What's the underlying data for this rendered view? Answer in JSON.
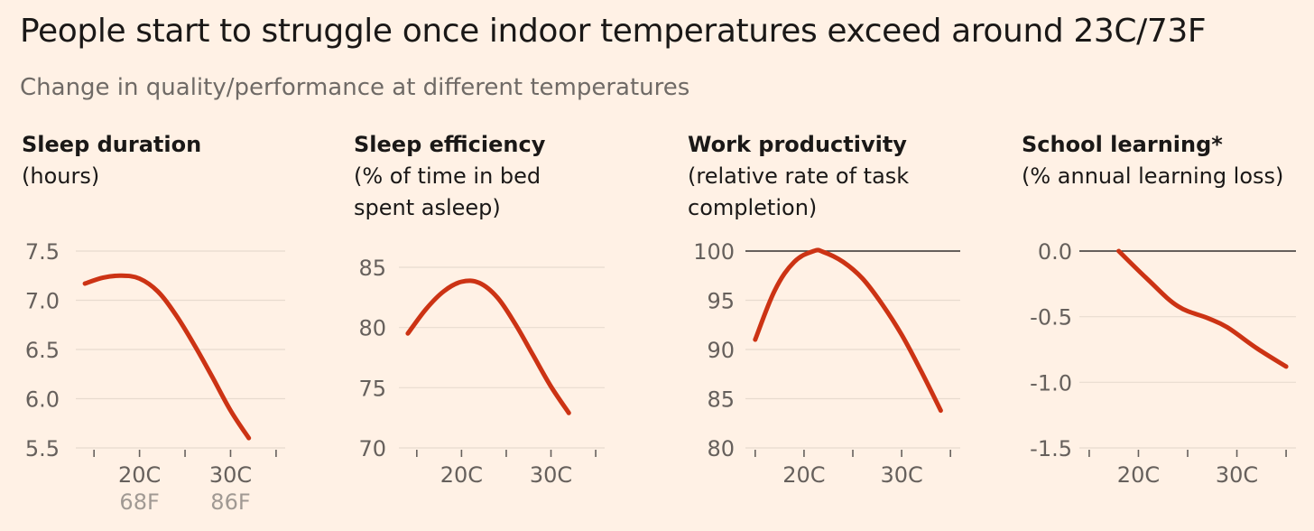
{
  "title": "People start to struggle once indoor temperatures exceed around 23C/73F",
  "subtitle": "Change in quality/performance at different temperatures",
  "colors": {
    "background": "#FFF1E5",
    "line": "#CC3314",
    "grid": "#E8DBCF",
    "reference_line": "#33302E",
    "tick_label": "#66605C",
    "secondary_tick_label": "#A09993"
  },
  "chart_data": [
    {
      "type": "line",
      "title": "Sleep duration",
      "ylabel": "(hours)",
      "x": [
        14,
        16,
        18,
        20,
        22,
        24,
        26,
        28,
        30,
        32
      ],
      "values": [
        7.17,
        7.23,
        7.25,
        7.22,
        7.09,
        6.85,
        6.55,
        6.22,
        5.88,
        5.6
      ],
      "xlim": [
        13,
        36
      ],
      "ylim": [
        5.5,
        7.5
      ],
      "yticks": [
        7.5,
        7.0,
        6.5,
        6.0,
        5.5
      ],
      "ytick_labels": [
        "7.5",
        "7.0",
        "6.5",
        "6.0",
        "5.5"
      ],
      "xticks": [
        15,
        20,
        25,
        30,
        35
      ],
      "xtick_labels": [
        {
          "x": 20,
          "label": "20C",
          "sub": "68F"
        },
        {
          "x": 30,
          "label": "30C",
          "sub": "86F"
        }
      ],
      "grid": true
    },
    {
      "type": "line",
      "title": "Sleep efficiency",
      "ylabel": "(% of time in bed spent asleep)",
      "x": [
        14,
        16,
        18,
        20,
        22,
        24,
        26,
        28,
        30,
        32
      ],
      "values": [
        79.5,
        81.5,
        83.0,
        83.8,
        83.7,
        82.5,
        80.3,
        77.7,
        75.1,
        72.9
      ],
      "xlim": [
        13,
        36
      ],
      "ylim": [
        70,
        85
      ],
      "yticks": [
        85,
        80,
        75,
        70
      ],
      "ytick_labels": [
        "85",
        "80",
        "75",
        "70"
      ],
      "xticks": [
        15,
        20,
        25,
        30,
        35
      ],
      "xtick_labels": [
        {
          "x": 20,
          "label": "20C"
        },
        {
          "x": 30,
          "label": "30C"
        }
      ],
      "grid": true
    },
    {
      "type": "line",
      "title": "Work productivity",
      "ylabel": "(relative rate of task completion)",
      "x": [
        15,
        17,
        19,
        21,
        22,
        24,
        26,
        28,
        30,
        32,
        34
      ],
      "values": [
        91,
        96,
        98.9,
        100,
        99.9,
        98.9,
        97.2,
        94.6,
        91.5,
        87.8,
        83.8
      ],
      "xlim": [
        14,
        36
      ],
      "ylim": [
        80,
        100
      ],
      "yticks": [
        100,
        95,
        90,
        85,
        80
      ],
      "ytick_labels": [
        "100",
        "95",
        "90",
        "85",
        "80"
      ],
      "reference_line": 100,
      "xticks": [
        15,
        20,
        25,
        30,
        35
      ],
      "xtick_labels": [
        {
          "x": 20,
          "label": "20C"
        },
        {
          "x": 30,
          "label": "30C"
        }
      ],
      "grid": true
    },
    {
      "type": "line",
      "title": "School learning*",
      "ylabel": "(% annual learning loss)",
      "x": [
        18,
        21,
        24,
        27,
        29,
        32,
        35
      ],
      "values": [
        0.0,
        -0.22,
        -0.42,
        -0.51,
        -0.58,
        -0.74,
        -0.88
      ],
      "xlim": [
        14,
        36
      ],
      "ylim": [
        -1.5,
        0.0
      ],
      "yticks": [
        0.0,
        -0.5,
        -1.0,
        -1.5
      ],
      "ytick_labels": [
        "0.0",
        "-0.5",
        "-1.0",
        "-1.5"
      ],
      "reference_line": 0.0,
      "xticks": [
        15,
        20,
        25,
        30,
        35
      ],
      "xtick_labels": [
        {
          "x": 20,
          "label": "20C"
        },
        {
          "x": 30,
          "label": "30C"
        }
      ],
      "grid": true
    }
  ]
}
